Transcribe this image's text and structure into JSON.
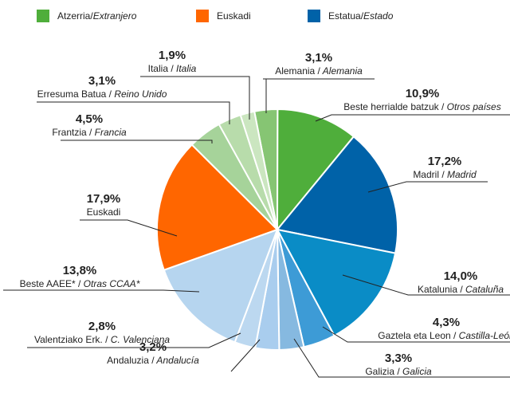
{
  "chart_data": {
    "type": "pie",
    "legend": [
      {
        "name": "Atzerria/Extranjero",
        "color": "#4fae3b"
      },
      {
        "name": "Euskadi",
        "color": "#ff6600"
      },
      {
        "name": "Estatua/Estado",
        "color": "#0062a8"
      }
    ],
    "categories": [
      "Alemania / Alemania",
      "Beste herrialde batzuk / Otros países",
      "Madril / Madrid",
      "Katalunia / Cataluña",
      "Gaztela eta Leon / Castilla-León",
      "Galizia / Galicia",
      "Andaluzia / Andalucía",
      "Valentziako Erk. / C. Valenciana",
      "Beste AAEE* / Otras CCAA*",
      "Euskadi",
      "Frantzia / Francia",
      "Erresuma Batua / Reino Unido",
      "Italia / Italia"
    ],
    "values": [
      3.1,
      10.9,
      17.2,
      14.0,
      4.3,
      3.3,
      3.2,
      2.8,
      13.8,
      17.9,
      4.5,
      3.1,
      1.9
    ],
    "value_labels": [
      "3,1%",
      "10,9%",
      "17,2%",
      "14,0%",
      "4,3%",
      "3,3%",
      "3,2%",
      "2,8%",
      "13,8%",
      "17,9%",
      "4,5%",
      "3,1%",
      "1,9%"
    ],
    "colors": [
      "#86c573",
      "#4fae3b",
      "#0062a8",
      "#0a8cc6",
      "#3d9bd6",
      "#86b9e0",
      "#a9cdee",
      "#bcd8f0",
      "#b6d5ef",
      "#ff6600",
      "#a6d39a",
      "#b8dcab",
      "#cbe6c0"
    ]
  }
}
